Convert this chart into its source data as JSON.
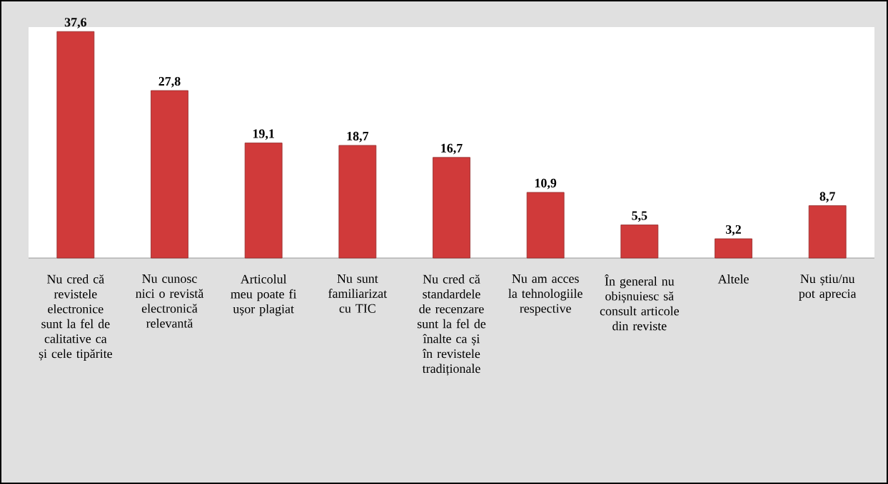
{
  "chart_data": {
    "type": "bar",
    "categories": [
      "Nu cred că revistele electronice sunt la fel de calitative ca și cele tipărite",
      "Nu cunosc nici o revistă electronică relevantă",
      "Articolul meu poate fi ușor plagiat",
      "Nu sunt familiarizat cu TIC",
      "Nu cred că standardele de recenzare sunt la fel de înalte ca și în revistele tradiționale",
      "Nu am acces la tehnologiile respective",
      "În general nu obișnuiesc să consult articole din reviste",
      "Altele",
      "Nu știu/nu pot aprecia"
    ],
    "values": [
      37.6,
      27.8,
      19.1,
      18.7,
      16.7,
      10.9,
      5.5,
      3.2,
      8.7
    ],
    "value_labels": [
      "37,6",
      "27,8",
      "19,1",
      "18,7",
      "16,7",
      "10,9",
      "5,5",
      "3,2",
      "8,7"
    ],
    "color": "#d03a3a"
  }
}
